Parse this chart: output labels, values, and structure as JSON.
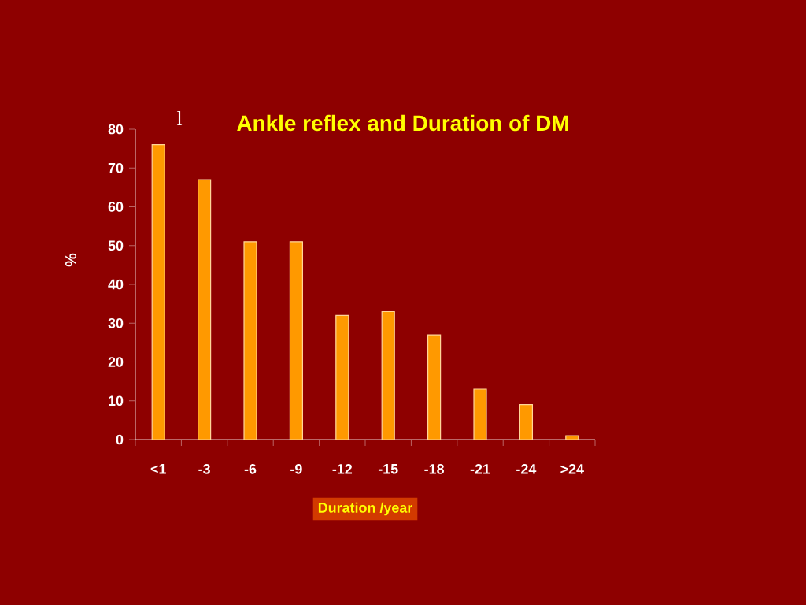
{
  "chart_data": {
    "type": "bar",
    "title": "Ankle reflex and Duration of DM",
    "xlabel": "Duration /year",
    "ylabel": "%",
    "categories": [
      "<1",
      "-3",
      "-6",
      "-9",
      "-12",
      "-15",
      "-18",
      "-21",
      "-24",
      ">24"
    ],
    "values": [
      76,
      67,
      51,
      51,
      32,
      33,
      27,
      13,
      9,
      1
    ],
    "color": "#ff9900",
    "ylim": [
      0,
      80
    ],
    "yticks": [
      0,
      10,
      20,
      30,
      40,
      50,
      60,
      70,
      80
    ],
    "grid": false,
    "annotations": [
      "l"
    ]
  }
}
